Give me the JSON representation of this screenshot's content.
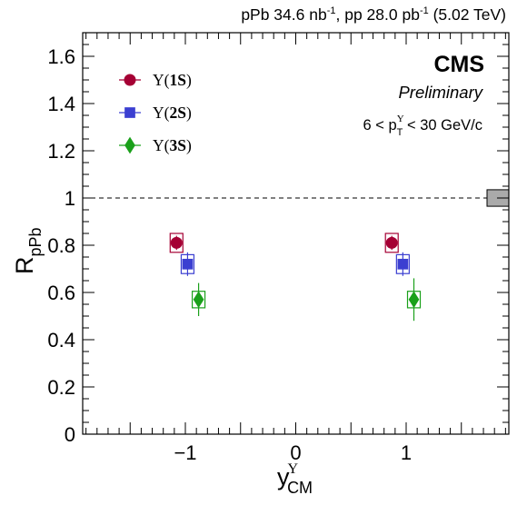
{
  "header": {
    "lumi_parts": [
      {
        "t": "pPb 34.6 nb",
        "sup": ""
      },
      {
        "t": "",
        "sup": "-1"
      },
      {
        "t": ", pp 28.0 pb",
        "sup": ""
      },
      {
        "t": "",
        "sup": "-1"
      },
      {
        "t": " (5.02 TeV)",
        "sup": ""
      }
    ]
  },
  "labels": {
    "experiment": "CMS",
    "status": "Preliminary",
    "pt_cut_pre": "6 < p",
    "pt_cut_sup": "Υ",
    "pt_cut_sub": "T",
    "pt_cut_post": " < 30 GeV/c"
  },
  "axes": {
    "ylabel_main": "R",
    "ylabel_sub": "pPb",
    "xlabel_main": "y",
    "xlabel_sup": "Υ",
    "xlabel_sub": "CM"
  },
  "chart_data": {
    "type": "scatter",
    "xlim": [
      -1.93,
      1.93
    ],
    "ylim": [
      0,
      1.7
    ],
    "xticks": [
      -1,
      0,
      1
    ],
    "xtick_labels": [
      "−1",
      "0",
      "1"
    ],
    "yticks": [
      0,
      0.2,
      0.4,
      0.6,
      0.8,
      1,
      1.2,
      1.4,
      1.6
    ],
    "ytick_labels": [
      "0",
      "0.2",
      "0.4",
      "0.6",
      "0.8",
      "1",
      "1.2",
      "1.4",
      "1.6"
    ],
    "reference_line": 1,
    "global_uncertainty_box": {
      "center": 1,
      "half_width": 0.035
    },
    "legend_position": "top-left",
    "series": [
      {
        "name": "Υ(1S)",
        "state": "1S",
        "marker": "circle",
        "color": "#a50034",
        "points": [
          {
            "x": -1.08,
            "y": 0.81,
            "stat": 0.03,
            "syst": 0.04
          },
          {
            "x": 0.87,
            "y": 0.81,
            "stat": 0.03,
            "syst": 0.04
          }
        ]
      },
      {
        "name": "Υ(2S)",
        "state": "2S",
        "marker": "square",
        "color": "#3b3fd1",
        "points": [
          {
            "x": -0.98,
            "y": 0.72,
            "stat": 0.05,
            "syst": 0.04
          },
          {
            "x": 0.97,
            "y": 0.72,
            "stat": 0.05,
            "syst": 0.04
          }
        ]
      },
      {
        "name": "Υ(3S)",
        "state": "3S",
        "marker": "diamond",
        "color": "#1aa01a",
        "points": [
          {
            "x": -0.88,
            "y": 0.57,
            "stat": 0.07,
            "syst": 0.035
          },
          {
            "x": 1.07,
            "y": 0.57,
            "stat": 0.09,
            "syst": 0.035
          }
        ]
      }
    ]
  }
}
